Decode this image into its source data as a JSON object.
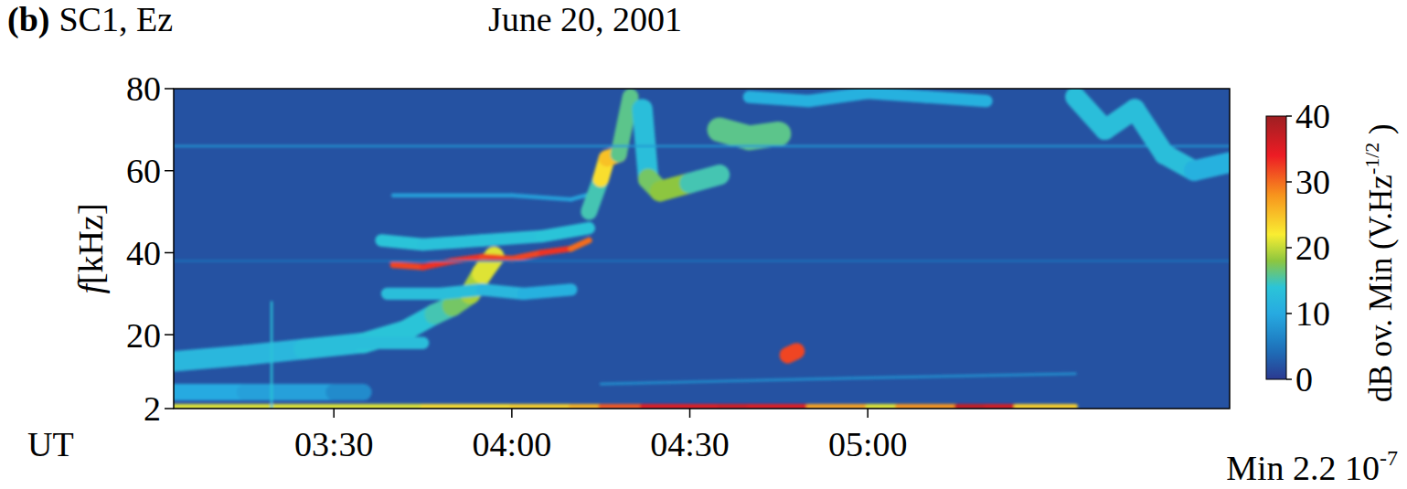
{
  "chart_data": {
    "type": "spectrogram",
    "panel_label": "(b)",
    "title": "SC1, Ez",
    "subtitle": "June 20, 2001",
    "x_label": "UT",
    "y_label": "f[kHz]",
    "xlim": [
      183,
      361
    ],
    "xticks": [
      {
        "value": 210,
        "label": "03:30"
      },
      {
        "value": 240,
        "label": "04:00"
      },
      {
        "value": 270,
        "label": "04:30"
      },
      {
        "value": 300,
        "label": "05:00"
      }
    ],
    "ylim": [
      2,
      80
    ],
    "yticks": [
      2,
      20,
      40,
      60,
      80
    ],
    "background": 2,
    "colorbar_label": "dB ov. Min (V.Hz",
    "colorbar_label_sup": "-1/2",
    "colorbar_label_end": " )",
    "colorbar_lim": [
      0,
      40
    ],
    "colorbar_ticks": [
      0,
      10,
      20,
      30,
      40
    ],
    "footnote": "Min 2.2 10",
    "footnote_sup": "-7",
    "series": [
      {
        "x": [
          183,
          200,
          225,
          240,
          250,
          255,
          262,
          275,
          280,
          290,
          300,
          302,
          305,
          315,
          320,
          325,
          335
        ],
        "values": [
          2.5,
          2.5,
          2.5,
          2.5,
          2.5,
          2.5,
          2.5,
          2.5,
          2.5,
          2.5,
          2.5,
          2.5,
          2.5,
          2.5,
          2.5,
          2.5,
          2.5
        ],
        "intensity": [
          22,
          20,
          22,
          24,
          24,
          28,
          34,
          36,
          36,
          34,
          20,
          22,
          20,
          36,
          38,
          34,
          14
        ],
        "bandwidth": 1.2
      },
      {
        "x": [
          183,
          195,
          210,
          215
        ],
        "values": [
          6,
          6,
          6,
          6
        ],
        "intensity": [
          10,
          10,
          8,
          6
        ],
        "bandwidth": 4
      },
      {
        "x": [
          183,
          195,
          205,
          215,
          222,
          227,
          230,
          233,
          235,
          237
        ],
        "values": [
          13.5,
          15,
          16.5,
          18,
          21,
          25,
          27,
          30,
          35,
          39
        ],
        "intensity": [
          12,
          12,
          12,
          14,
          14,
          14,
          16,
          18,
          20,
          22
        ],
        "bandwidth": 5
      },
      {
        "x": [
          220,
          225,
          230,
          235,
          240,
          245,
          250,
          253
        ],
        "values": [
          37,
          36.5,
          38,
          39,
          38.5,
          40,
          41,
          43
        ],
        "intensity": [
          30,
          34,
          32,
          34,
          30,
          34,
          32,
          28
        ],
        "bandwidth": 1.5
      },
      {
        "x": [
          218,
          225,
          235,
          245,
          253
        ],
        "values": [
          43,
          42,
          43,
          44,
          46
        ],
        "intensity": [
          14,
          14,
          13,
          14,
          14
        ],
        "bandwidth": 3
      },
      {
        "x": [
          220,
          240,
          250,
          255
        ],
        "values": [
          54,
          54,
          53,
          55
        ],
        "intensity": [
          9,
          9,
          9,
          10
        ],
        "bandwidth": 1
      },
      {
        "x": [
          219,
          228,
          235,
          242,
          250
        ],
        "values": [
          30,
          30,
          31,
          30,
          31
        ],
        "intensity": [
          12,
          14,
          12,
          12,
          10
        ],
        "bandwidth": 3
      },
      {
        "x": [
          212,
          218,
          225
        ],
        "values": [
          18,
          18,
          18
        ],
        "intensity": [
          12,
          14,
          12
        ],
        "bandwidth": 3
      },
      {
        "x": [
          253,
          255,
          256,
          258,
          260
        ],
        "values": [
          50,
          58,
          63,
          64,
          78
        ],
        "intensity": [
          14,
          16,
          30,
          20,
          12
        ],
        "bandwidth": 4
      },
      {
        "x": [
          262,
          263,
          265,
          270,
          275
        ],
        "values": [
          75,
          58,
          55,
          57,
          59
        ],
        "intensity": [
          12,
          14,
          20,
          16,
          14
        ],
        "bandwidth": 5
      },
      {
        "x": [
          275,
          280,
          285
        ],
        "values": [
          70,
          68,
          69
        ],
        "intensity": [
          14,
          18,
          14
        ],
        "bandwidth": 6
      },
      {
        "x": [
          183,
          361
        ],
        "values": [
          66,
          66
        ],
        "intensity": [
          8,
          8
        ],
        "bandwidth": 0.5
      },
      {
        "x": [
          183,
          361
        ],
        "values": [
          38,
          38
        ],
        "intensity": [
          5,
          5
        ],
        "bandwidth": 0.4
      },
      {
        "x": [
          255,
          300,
          335
        ],
        "values": [
          8,
          9.5,
          10.5
        ],
        "intensity": [
          7,
          8,
          7
        ],
        "bandwidth": 0.6
      },
      {
        "x": [
          286.5,
          288
        ],
        "values": [
          15,
          16
        ],
        "intensity": [
          32,
          32
        ],
        "bandwidth": 4
      },
      {
        "x": [
          335,
          340,
          345,
          350,
          355,
          361
        ],
        "values": [
          78,
          70,
          75,
          64,
          60,
          62
        ],
        "intensity": [
          12,
          14,
          12,
          14,
          12,
          10
        ],
        "bandwidth": 5
      },
      {
        "x": [
          280,
          290,
          300,
          310,
          320
        ],
        "values": [
          78,
          77,
          79,
          78,
          77
        ],
        "intensity": [
          10,
          12,
          10,
          12,
          10
        ],
        "bandwidth": 3
      },
      {
        "x": [
          199.5,
          199.5
        ],
        "values": [
          2,
          28
        ],
        "intensity": [
          18,
          10
        ],
        "bandwidth": 0.5
      }
    ]
  }
}
